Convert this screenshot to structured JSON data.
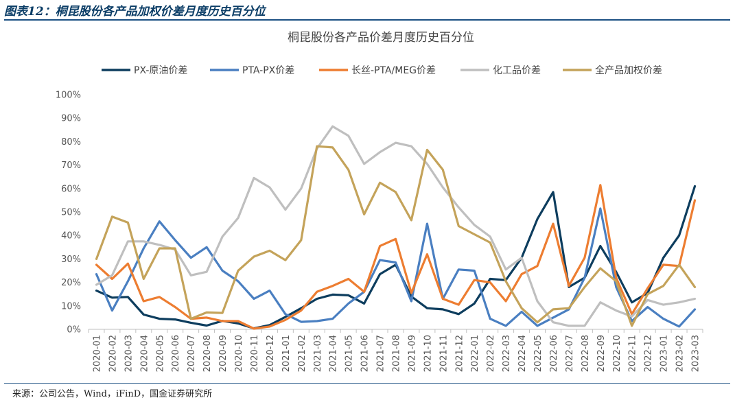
{
  "header": {
    "figure_title": "图表12：桐昆股份各产品加权价差月度历史百分位"
  },
  "footer": {
    "source": "来源：公司公告，Wind，iFinD，国金证券研究所"
  },
  "chart_data": {
    "type": "line",
    "title": "桐昆股份各产品价差月度历史百分位",
    "xlabel": "",
    "ylabel": "",
    "ylim": [
      0,
      100
    ],
    "y_ticks": [
      "0%",
      "10%",
      "20%",
      "30%",
      "40%",
      "50%",
      "60%",
      "70%",
      "80%",
      "90%",
      "100%"
    ],
    "grid": false,
    "legend_position": "top",
    "categories": [
      "2020-01",
      "2020-02",
      "2020-03",
      "2020-04",
      "2020-05",
      "2020-06",
      "2020-07",
      "2020-08",
      "2020-09",
      "2020-10",
      "2020-11",
      "2020-12",
      "2021-01",
      "2021-02",
      "2021-03",
      "2021-04",
      "2021-05",
      "2021-06",
      "2021-07",
      "2021-08",
      "2021-09",
      "2021-10",
      "2021-11",
      "2021-12",
      "2022-01",
      "2022-02",
      "2022-03",
      "2022-04",
      "2022-05",
      "2022-06",
      "2022-07",
      "2022-08",
      "2022-09",
      "2022-10",
      "2022-11",
      "2022-12",
      "2023-01",
      "2023-02",
      "2023-03"
    ],
    "series": [
      {
        "name": "PX-原油价差",
        "color": "#0d3d5e",
        "values": [
          16.5,
          13.5,
          13.8,
          6.3,
          4.5,
          4.2,
          2.8,
          1.6,
          3.6,
          2.5,
          0.4,
          1.8,
          5.3,
          9,
          13,
          14.8,
          14.5,
          11,
          23.5,
          27.5,
          14,
          9,
          8.5,
          6.5,
          11,
          21.5,
          21,
          30.5,
          47,
          58.5,
          18,
          22,
          35.5,
          24.5,
          11.5,
          15.5,
          30.5,
          40,
          61
        ]
      },
      {
        "name": "PTA-PX价差",
        "color": "#4a7fc1",
        "values": [
          23.5,
          8,
          20.5,
          34.5,
          46,
          38,
          30.5,
          35,
          25,
          20.5,
          13,
          16.5,
          6.5,
          3.2,
          3.5,
          4.5,
          11,
          16,
          29.5,
          28.5,
          12,
          45,
          13,
          25.5,
          25,
          4.5,
          1.5,
          7.5,
          1.5,
          5,
          8.5,
          22,
          51.5,
          18,
          3.5,
          9.5,
          4.5,
          1.2,
          8.5
        ]
      },
      {
        "name": "长丝-PTA/MEG价差",
        "color": "#ed7d31",
        "values": [
          27.5,
          21.5,
          28,
          12,
          13.8,
          9.5,
          4.5,
          5,
          3.5,
          3.5,
          0.3,
          1.2,
          4,
          8,
          16,
          18.5,
          21.5,
          16,
          35.5,
          38.5,
          15.5,
          32,
          13,
          10.5,
          21,
          20,
          12,
          23.5,
          27,
          45,
          18.5,
          30.5,
          61.5,
          22,
          6.5,
          17.5,
          27.5,
          27,
          55
        ]
      },
      {
        "name": "化工品价差",
        "color": "#bfbfbf",
        "values": [
          19,
          23,
          37.5,
          37.5,
          36,
          34,
          23,
          24.5,
          39.5,
          47.5,
          64.5,
          60.5,
          51,
          60,
          77,
          86.5,
          82.5,
          70.5,
          75.5,
          79.5,
          78,
          70.5,
          60.5,
          52,
          44.5,
          39.5,
          25.5,
          30.5,
          12,
          3,
          1.5,
          1.5,
          11.5,
          8,
          5.5,
          12.5,
          10.5,
          11.5,
          13
        ]
      },
      {
        "name": "全产品加权价差",
        "color": "#c4a35a",
        "values": [
          30,
          48,
          45.5,
          21.5,
          34.5,
          34.5,
          4.5,
          7.2,
          7,
          25,
          31,
          33.5,
          29.5,
          38,
          78,
          77.5,
          68,
          49,
          62.5,
          58.5,
          46.5,
          76.5,
          68,
          44,
          40.5,
          37,
          20.5,
          9,
          3,
          8.5,
          9,
          18,
          26,
          20.5,
          1.5,
          15,
          18.5,
          27.5,
          18
        ]
      }
    ]
  }
}
